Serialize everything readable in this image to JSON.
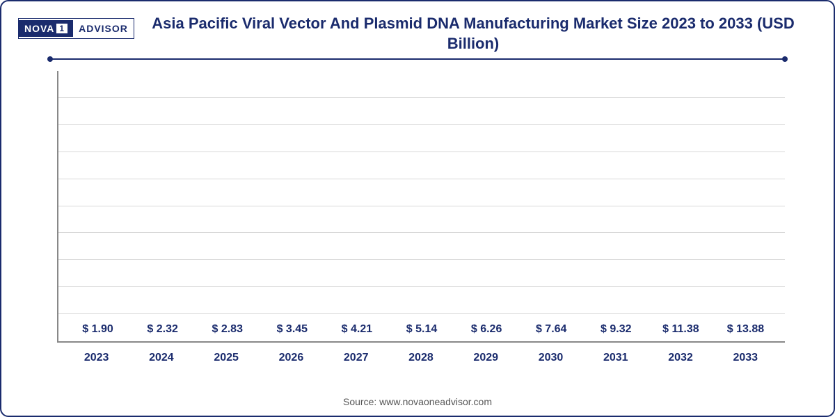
{
  "logo": {
    "left_text": "NOVA",
    "number": "1",
    "right_text": "ADVISOR"
  },
  "chart": {
    "type": "bar",
    "title": "Asia Pacific Viral Vector And Plasmid DNA Manufacturing Market Size 2023 to 2033 (USD Billion)",
    "title_fontsize": 22,
    "title_color": "#1a2b6d",
    "categories": [
      "2023",
      "2024",
      "2025",
      "2026",
      "2027",
      "2028",
      "2029",
      "2030",
      "2031",
      "2032",
      "2033"
    ],
    "values": [
      1.9,
      2.32,
      2.83,
      3.45,
      4.21,
      5.14,
      6.26,
      7.64,
      9.32,
      11.38,
      13.88
    ],
    "value_labels": [
      "$ 1.90",
      "$ 2.32",
      "$ 2.83",
      "$ 3.45",
      "$ 4.21",
      "$ 5.14",
      "$ 6.26",
      "$ 7.64",
      "$ 9.32",
      "$ 11.38",
      "$ 13.88"
    ],
    "bar_colors": [
      "#3fb4e8",
      "#2ea3db",
      "#2590ca",
      "#1e7fba",
      "#1a70ad",
      "#1763a0",
      "#155793",
      "#134c86",
      "#11417a",
      "#0f376e",
      "#0d2e62"
    ],
    "ylim": [
      0,
      15
    ],
    "gridline_count": 9,
    "grid_color": "#d8d8d8",
    "axis_color": "#888888",
    "label_fontsize": 16,
    "label_color": "#1a2b6d",
    "bar_width": 0.58,
    "background_color": "#ffffff"
  },
  "source": "Source: www.novaoneadvisor.com"
}
